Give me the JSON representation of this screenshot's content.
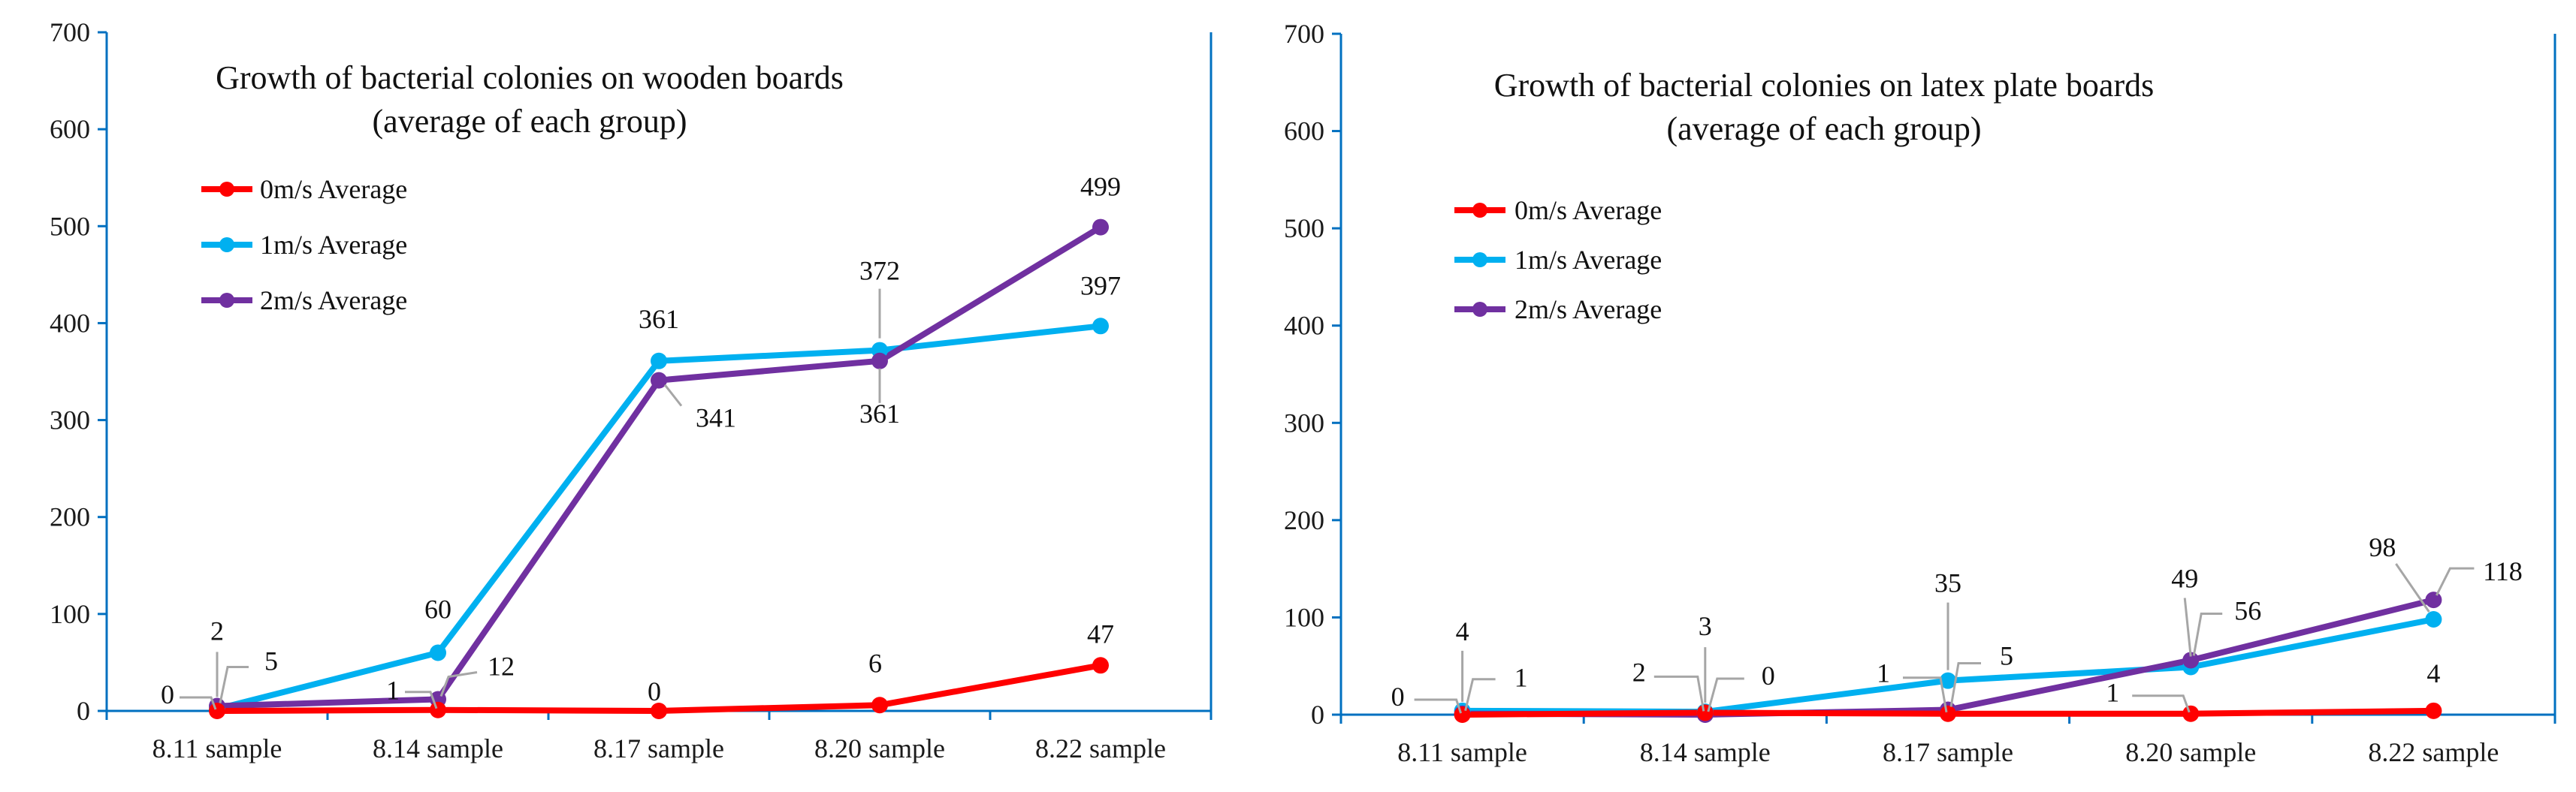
{
  "chart_data": [
    {
      "type": "line",
      "title_lines": [
        "Growth of bacterial colonies on wooden boards",
        "(average of each group)"
      ],
      "categories": [
        "8.11 sample",
        "8.14 sample",
        "8.17 sample",
        "8.20 sample",
        "8.22 sample"
      ],
      "ylim": [
        0,
        700
      ],
      "yticks": [
        "0",
        "100",
        "200",
        "300",
        "400",
        "500",
        "600",
        "700"
      ],
      "legend_position": "top-left",
      "series": [
        {
          "name": "0m/s Average",
          "color": "#ff0000",
          "values": [
            0,
            1,
            0,
            6,
            47
          ],
          "labels": [
            "0",
            "1",
            "0",
            "6",
            "47"
          ]
        },
        {
          "name": "1m/s Average",
          "color": "#00b0f0",
          "values": [
            2,
            60,
            361,
            372,
            397
          ],
          "labels": [
            "2",
            "60",
            "361",
            "372",
            "397"
          ]
        },
        {
          "name": "2m/s Average",
          "color": "#7030a0",
          "values": [
            5,
            12,
            341,
            361,
            499
          ],
          "labels": [
            "5",
            "12",
            "341",
            "361",
            "499"
          ]
        }
      ]
    },
    {
      "type": "line",
      "title_lines": [
        "Growth of bacterial colonies on latex plate boards",
        "(average of each group)"
      ],
      "categories": [
        "8.11 sample",
        "8.14 sample",
        "8.17 sample",
        "8.20 sample",
        "8.22 sample"
      ],
      "ylim": [
        0,
        700
      ],
      "yticks": [
        "0",
        "100",
        "200",
        "300",
        "400",
        "500",
        "600",
        "700"
      ],
      "legend_position": "top-left",
      "series": [
        {
          "name": "0m/s Average",
          "color": "#ff0000",
          "values": [
            0,
            2,
            1,
            1,
            4
          ],
          "labels": [
            "0",
            "2",
            "1",
            "1",
            "4"
          ]
        },
        {
          "name": "1m/s Average",
          "color": "#00b0f0",
          "values": [
            4,
            3,
            35,
            49,
            98
          ],
          "labels": [
            "4",
            "3",
            "35",
            "49",
            "98"
          ]
        },
        {
          "name": "2m/s Average",
          "color": "#7030a0",
          "values": [
            1,
            0,
            5,
            56,
            118
          ],
          "labels": [
            "1",
            "0",
            "5",
            "56",
            "118"
          ]
        }
      ]
    }
  ]
}
